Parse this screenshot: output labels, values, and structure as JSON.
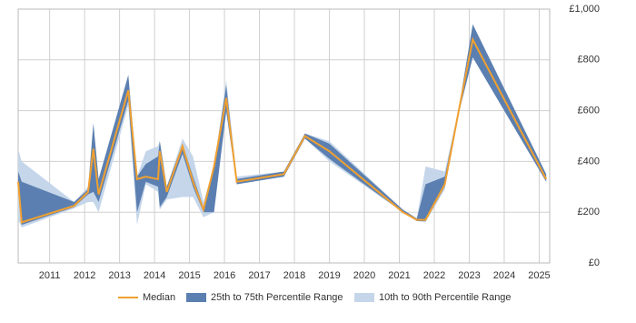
{
  "chart_data": {
    "type": "line-band",
    "x": [
      2010.1,
      2010.2,
      2011.7,
      2012.1,
      2012.25,
      2012.4,
      2013.25,
      2013.5,
      2013.75,
      2014.1,
      2014.15,
      2014.35,
      2014.8,
      2015.1,
      2015.4,
      2015.7,
      2016.05,
      2016.35,
      2017.7,
      2018.3,
      2019.0,
      2021.1,
      2021.5,
      2021.75,
      2022.3,
      2022.7,
      2023.1,
      2025.2
    ],
    "series": [
      {
        "name": "Median",
        "color": "#f0a030",
        "values": [
          320,
          160,
          225,
          280,
          450,
          270,
          680,
          330,
          340,
          330,
          440,
          280,
          460,
          320,
          210,
          380,
          650,
          320,
          350,
          500,
          440,
          200,
          170,
          170,
          310,
          600,
          880,
          330
        ]
      },
      {
        "name": "25th to 75th Percentile Range",
        "color": "#5b7fb0",
        "lower": [
          310,
          150,
          220,
          270,
          280,
          240,
          640,
          200,
          320,
          300,
          220,
          260,
          430,
          300,
          200,
          200,
          600,
          310,
          340,
          490,
          410,
          200,
          165,
          165,
          300,
          590,
          810,
          320
        ],
        "upper": [
          360,
          320,
          240,
          290,
          550,
          330,
          740,
          340,
          390,
          420,
          480,
          300,
          470,
          340,
          220,
          380,
          700,
          330,
          360,
          510,
          470,
          210,
          175,
          310,
          340,
          610,
          940,
          350
        ]
      },
      {
        "name": "10th to 90th Percentile Range",
        "color": "#c5d6ea",
        "lower": [
          170,
          140,
          215,
          240,
          240,
          200,
          620,
          150,
          310,
          280,
          210,
          250,
          260,
          260,
          180,
          200,
          590,
          310,
          340,
          490,
          400,
          200,
          165,
          160,
          290,
          590,
          810,
          320
        ],
        "upper": [
          450,
          400,
          240,
          300,
          550,
          330,
          740,
          340,
          440,
          460,
          480,
          300,
          490,
          420,
          240,
          380,
          720,
          340,
          360,
          510,
          480,
          210,
          175,
          380,
          360,
          610,
          940,
          350
        ]
      }
    ],
    "xlim": [
      2010.1,
      2025.3
    ],
    "xticks": [
      2011,
      2012,
      2013,
      2014,
      2015,
      2016,
      2017,
      2018,
      2019,
      2020,
      2021,
      2022,
      2023,
      2024,
      2025
    ],
    "ylim": [
      0,
      1000
    ],
    "yticks": [
      {
        "value": 0,
        "label": "£0"
      },
      {
        "value": 200,
        "label": "£200"
      },
      {
        "value": 400,
        "label": "£400"
      },
      {
        "value": 600,
        "label": "£600"
      },
      {
        "value": 800,
        "label": "£800"
      },
      {
        "value": 1000,
        "label": "£1,000"
      }
    ],
    "grid": true,
    "legend": "bottom"
  }
}
